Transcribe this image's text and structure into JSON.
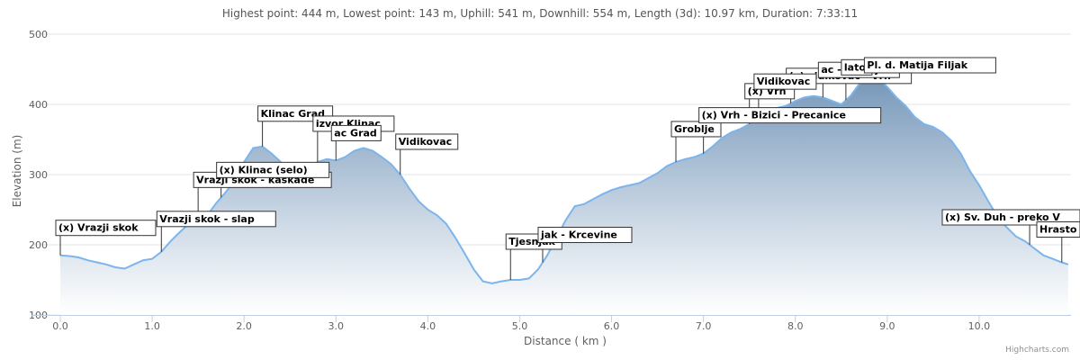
{
  "chart_info": {
    "stats": "Highest point: 444 m, Lowest point: 143 m, Uphill: 541 m, Downhill: 554 m, Length (3d): 10.97 km, Duration: 7:33:11",
    "credits": "Highcharts.com"
  },
  "chart_data": {
    "type": "area",
    "xlabel": "Distance ( km )",
    "ylabel": "Elevation (m)",
    "xlim": [
      0,
      11
    ],
    "ylim": [
      100,
      500
    ],
    "x_ticks": [
      "0.0",
      "1.0",
      "2.0",
      "3.0",
      "4.0",
      "5.0",
      "6.0",
      "7.0",
      "8.0",
      "9.0",
      "10.0"
    ],
    "y_ticks": [
      "500",
      "400",
      "300",
      "200",
      "100"
    ],
    "grid": true,
    "legend": "none",
    "colors": {
      "line": "#7cb5ec",
      "fill_top": "#7395b8",
      "fill_bottom": "#ffffff",
      "grid": "#e6e6e6"
    },
    "x": [
      0,
      0.1,
      0.2,
      0.3,
      0.4,
      0.5,
      0.6,
      0.7,
      0.8,
      0.9,
      1.0,
      1.1,
      1.2,
      1.3,
      1.4,
      1.5,
      1.6,
      1.7,
      1.8,
      1.9,
      2.0,
      2.1,
      2.2,
      2.3,
      2.4,
      2.5,
      2.6,
      2.7,
      2.8,
      2.9,
      3.0,
      3.1,
      3.2,
      3.3,
      3.4,
      3.5,
      3.6,
      3.7,
      3.8,
      3.9,
      4.0,
      4.1,
      4.2,
      4.3,
      4.4,
      4.5,
      4.6,
      4.7,
      4.8,
      4.9,
      5.0,
      5.1,
      5.2,
      5.3,
      5.4,
      5.5,
      5.6,
      5.7,
      5.8,
      5.9,
      6.0,
      6.1,
      6.2,
      6.3,
      6.4,
      6.5,
      6.6,
      6.7,
      6.8,
      6.9,
      7.0,
      7.1,
      7.2,
      7.3,
      7.4,
      7.5,
      7.6,
      7.7,
      7.8,
      7.9,
      8.0,
      8.1,
      8.2,
      8.3,
      8.4,
      8.5,
      8.6,
      8.7,
      8.8,
      8.9,
      9.0,
      9.1,
      9.2,
      9.3,
      9.4,
      9.5,
      9.6,
      9.7,
      9.8,
      9.9,
      10.0,
      10.1,
      10.2,
      10.3,
      10.4,
      10.5,
      10.6,
      10.7,
      10.8,
      10.9,
      10.97
    ],
    "series": [
      {
        "values": [
          185,
          184,
          182,
          178,
          175,
          172,
          168,
          166,
          172,
          178,
          180,
          190,
          205,
          218,
          230,
          238,
          242,
          260,
          275,
          292,
          318,
          338,
          340,
          330,
          318,
          305,
          300,
          312,
          318,
          322,
          320,
          325,
          334,
          338,
          334,
          325,
          315,
          300,
          280,
          262,
          250,
          242,
          230,
          210,
          188,
          165,
          148,
          145,
          148,
          150,
          150,
          152,
          165,
          185,
          210,
          235,
          255,
          258,
          265,
          272,
          278,
          282,
          285,
          288,
          295,
          302,
          312,
          318,
          322,
          325,
          330,
          340,
          352,
          360,
          365,
          372,
          378,
          388,
          395,
          398,
          405,
          410,
          412,
          410,
          405,
          400,
          412,
          430,
          444,
          438,
          425,
          410,
          398,
          382,
          372,
          368,
          360,
          348,
          330,
          305,
          285,
          262,
          240,
          225,
          212,
          205,
          195,
          185,
          180,
          175,
          172
        ]
      }
    ],
    "annotations": [
      {
        "label": "(x) Vrazji skok",
        "x": 0.0
      },
      {
        "label": "Vrazji skok - slap",
        "x": 1.1
      },
      {
        "label": "Vrazji skok - kaskade",
        "x": 1.5
      },
      {
        "label": "(x) Klinac (selo)",
        "x": 1.75
      },
      {
        "label": "Klinac Grad",
        "x": 2.2
      },
      {
        "label": "izvor Klinac",
        "x": 2.8
      },
      {
        "label": "ac Grad",
        "x": 3.0
      },
      {
        "label": "Vidikovac",
        "x": 3.7
      },
      {
        "label": "Tjesnjak",
        "x": 4.9
      },
      {
        "label": "jak - Krcevine",
        "x": 5.25
      },
      {
        "label": "Groblje",
        "x": 6.7
      },
      {
        "label": "(x) Vrh - Bizici - Precanice",
        "x": 7.0
      },
      {
        "label": "(x) vidikovac - Vrh",
        "x": 7.95
      },
      {
        "label": "(x) Vrh",
        "x": 7.5
      },
      {
        "label": "Vidikovac",
        "x": 7.6
      },
      {
        "label": "ac - Baculja",
        "x": 8.3
      },
      {
        "label": "lato",
        "x": 8.55
      },
      {
        "label": "Pl. d. Matija Filjak",
        "x": 8.8
      },
      {
        "label": "(x) Sv. Duh - preko V",
        "x": 10.55
      },
      {
        "label": "Hrasto",
        "x": 10.9
      }
    ]
  }
}
